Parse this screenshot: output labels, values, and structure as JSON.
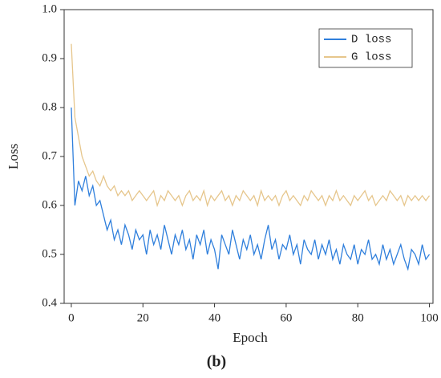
{
  "chart_data": {
    "type": "line",
    "caption": "(b)",
    "xlabel": "Epoch",
    "ylabel": "Loss",
    "x": [
      0,
      1,
      2,
      3,
      4,
      5,
      6,
      7,
      8,
      9,
      10,
      11,
      12,
      13,
      14,
      15,
      16,
      17,
      18,
      19,
      20,
      21,
      22,
      23,
      24,
      25,
      26,
      27,
      28,
      29,
      30,
      31,
      32,
      33,
      34,
      35,
      36,
      37,
      38,
      39,
      40,
      41,
      42,
      43,
      44,
      45,
      46,
      47,
      48,
      49,
      50,
      51,
      52,
      53,
      54,
      55,
      56,
      57,
      58,
      59,
      60,
      61,
      62,
      63,
      64,
      65,
      66,
      67,
      68,
      69,
      70,
      71,
      72,
      73,
      74,
      75,
      76,
      77,
      78,
      79,
      80,
      81,
      82,
      83,
      84,
      85,
      86,
      87,
      88,
      89,
      90,
      91,
      92,
      93,
      94,
      95,
      96,
      97,
      98,
      99,
      100
    ],
    "series": [
      {
        "name": "D loss",
        "color": "#2f7fdc",
        "values": [
          0.8,
          0.6,
          0.65,
          0.63,
          0.66,
          0.62,
          0.64,
          0.6,
          0.61,
          0.58,
          0.55,
          0.57,
          0.53,
          0.55,
          0.52,
          0.56,
          0.54,
          0.51,
          0.55,
          0.53,
          0.54,
          0.5,
          0.55,
          0.52,
          0.54,
          0.51,
          0.56,
          0.53,
          0.5,
          0.54,
          0.52,
          0.55,
          0.51,
          0.53,
          0.49,
          0.54,
          0.52,
          0.55,
          0.5,
          0.53,
          0.51,
          0.47,
          0.54,
          0.52,
          0.5,
          0.55,
          0.52,
          0.49,
          0.53,
          0.51,
          0.54,
          0.5,
          0.52,
          0.49,
          0.53,
          0.56,
          0.51,
          0.53,
          0.49,
          0.52,
          0.51,
          0.54,
          0.5,
          0.52,
          0.48,
          0.53,
          0.51,
          0.5,
          0.53,
          0.49,
          0.52,
          0.5,
          0.53,
          0.49,
          0.51,
          0.48,
          0.52,
          0.5,
          0.49,
          0.52,
          0.48,
          0.51,
          0.5,
          0.53,
          0.49,
          0.5,
          0.48,
          0.52,
          0.49,
          0.51,
          0.48,
          0.5,
          0.52,
          0.49,
          0.47,
          0.51,
          0.5,
          0.48,
          0.52,
          0.49,
          0.5
        ]
      },
      {
        "name": "G loss",
        "color": "#e6c68c",
        "values": [
          0.93,
          0.78,
          0.74,
          0.7,
          0.68,
          0.66,
          0.67,
          0.65,
          0.64,
          0.66,
          0.64,
          0.63,
          0.64,
          0.62,
          0.63,
          0.62,
          0.63,
          0.61,
          0.62,
          0.63,
          0.62,
          0.61,
          0.62,
          0.63,
          0.6,
          0.62,
          0.61,
          0.63,
          0.62,
          0.61,
          0.62,
          0.6,
          0.62,
          0.63,
          0.61,
          0.62,
          0.61,
          0.63,
          0.6,
          0.62,
          0.61,
          0.62,
          0.63,
          0.61,
          0.62,
          0.6,
          0.62,
          0.61,
          0.63,
          0.62,
          0.61,
          0.62,
          0.6,
          0.63,
          0.61,
          0.62,
          0.61,
          0.62,
          0.6,
          0.62,
          0.63,
          0.61,
          0.62,
          0.61,
          0.6,
          0.62,
          0.61,
          0.63,
          0.62,
          0.61,
          0.62,
          0.6,
          0.62,
          0.61,
          0.63,
          0.61,
          0.62,
          0.61,
          0.6,
          0.62,
          0.61,
          0.62,
          0.63,
          0.61,
          0.62,
          0.6,
          0.61,
          0.62,
          0.61,
          0.63,
          0.62,
          0.61,
          0.62,
          0.6,
          0.62,
          0.61,
          0.62,
          0.61,
          0.62,
          0.61,
          0.62
        ]
      }
    ],
    "xlim": [
      -2,
      101
    ],
    "xticks": [
      0,
      20,
      40,
      60,
      80,
      100
    ],
    "ylim": [
      0.4,
      1.0
    ],
    "yticks": [
      0.4,
      0.5,
      0.6,
      0.7,
      0.8,
      0.9,
      {
        "value": 1.0,
        "label": "1.0"
      }
    ],
    "legend": "upper right",
    "grid": false
  }
}
